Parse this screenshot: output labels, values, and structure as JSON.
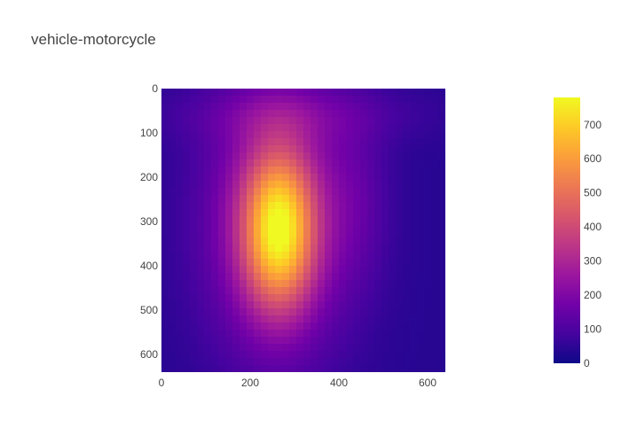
{
  "chart_data": {
    "type": "heatmap",
    "title": "vehicle-motorcycle",
    "xlabel": "",
    "ylabel": "",
    "xlim": [
      0,
      640
    ],
    "ylim": [
      640,
      0
    ],
    "x_ticks": [
      0,
      200,
      400,
      600
    ],
    "y_ticks": [
      0,
      100,
      200,
      300,
      400,
      500,
      600
    ],
    "colorbar": {
      "min": 0,
      "max": 780,
      "ticks": [
        0,
        100,
        200,
        300,
        400,
        500,
        600,
        700
      ],
      "colorscale": [
        "#0d0887",
        "#46039f",
        "#7201a8",
        "#9c179e",
        "#bd3786",
        "#d8576b",
        "#ed7953",
        "#fb9f3a",
        "#fdca26",
        "#f0f921"
      ]
    },
    "field": {
      "background_value": 40,
      "blobs": [
        {
          "cx": 265,
          "cy": 320,
          "sx": 55,
          "sy": 120,
          "amp": 520
        },
        {
          "cx": 260,
          "cy": 300,
          "sx": 110,
          "sy": 210,
          "amp": 260
        },
        {
          "cx": 300,
          "cy": 60,
          "sx": 200,
          "sy": 45,
          "amp": 70
        },
        {
          "cx": 440,
          "cy": 250,
          "sx": 50,
          "sy": 140,
          "amp": 60
        }
      ]
    }
  },
  "colors": {
    "title": "#444444",
    "tick": "#444444"
  }
}
